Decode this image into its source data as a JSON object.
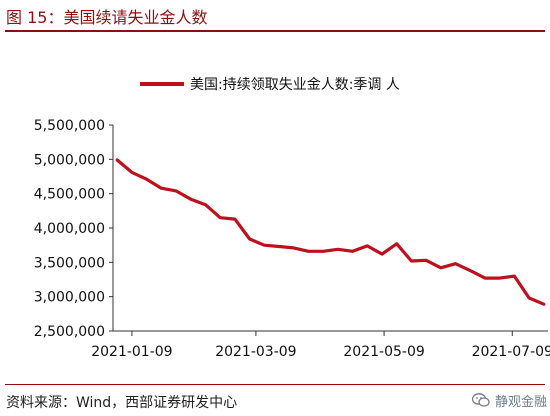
{
  "figure": {
    "title": "图 15：美国续请失业金人数",
    "source": "资料来源：Wind，西部证券研发中心",
    "watermark": "静观金融",
    "watermark_icon": "wechat-icon"
  },
  "colors": {
    "series": "#c0101e",
    "title": "#8c1010"
  },
  "chart_data": {
    "type": "line",
    "title": "",
    "xlabel": "",
    "ylabel": "",
    "ylim": [
      2500000,
      5500000
    ],
    "yticks": [
      2500000,
      3000000,
      3500000,
      4000000,
      4500000,
      5000000,
      5500000
    ],
    "ytick_labels": [
      "2,500,000",
      "3,000,000",
      "3,500,000",
      "4,000,000",
      "4,500,000",
      "5,000,000",
      "5,500,000"
    ],
    "xticks": [
      "2021-01-09",
      "2021-03-09",
      "2021-05-09",
      "2021-07-09"
    ],
    "grid": false,
    "legend_position": "top-center",
    "series": [
      {
        "name": "美国:持续领取失业金人数:季调 人",
        "x": [
          "2021-01-02",
          "2021-01-09",
          "2021-01-16",
          "2021-01-23",
          "2021-01-30",
          "2021-02-06",
          "2021-02-13",
          "2021-02-20",
          "2021-02-27",
          "2021-03-06",
          "2021-03-13",
          "2021-03-20",
          "2021-03-27",
          "2021-04-03",
          "2021-04-10",
          "2021-04-17",
          "2021-04-24",
          "2021-05-01",
          "2021-05-08",
          "2021-05-15",
          "2021-05-22",
          "2021-05-29",
          "2021-06-05",
          "2021-06-12",
          "2021-06-19",
          "2021-06-26",
          "2021-07-03",
          "2021-07-10",
          "2021-07-17",
          "2021-07-24"
        ],
        "values": [
          4990000,
          4810000,
          4710000,
          4580000,
          4540000,
          4420000,
          4340000,
          4150000,
          4130000,
          3840000,
          3750000,
          3730000,
          3710000,
          3660000,
          3660000,
          3690000,
          3660000,
          3740000,
          3620000,
          3770000,
          3520000,
          3530000,
          3420000,
          3480000,
          3380000,
          3270000,
          3270000,
          3300000,
          2980000,
          2890000
        ]
      }
    ]
  }
}
